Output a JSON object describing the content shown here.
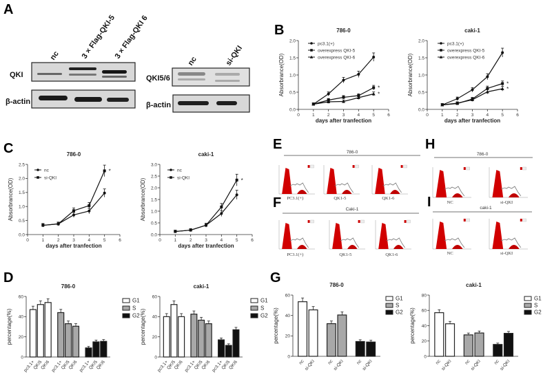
{
  "panel_labels": [
    "A",
    "B",
    "C",
    "D",
    "E",
    "F",
    "G",
    "H",
    "I"
  ],
  "blots": {
    "overexpression": {
      "lanes": [
        "nc",
        "3 × Flag-QKI-5",
        "3 × Flag-QKI 6"
      ],
      "rows": [
        "QKI",
        "β-actin"
      ]
    },
    "knockdown": {
      "lanes": [
        "nc",
        "si-QKI"
      ],
      "rows": [
        "QKI5/6",
        "β-actin"
      ]
    }
  },
  "flow": {
    "E": {
      "title": "786-0",
      "captions": [
        "PC3.1(+)",
        "QK1-5",
        "QK1-6"
      ]
    },
    "F": {
      "title": "Caki-1",
      "captions": [
        "PC3.1(+)",
        "QK1-5",
        "QK1-6"
      ]
    },
    "H": {
      "title": "786-0",
      "captions": [
        "NC",
        "si-QKI"
      ]
    },
    "I": {
      "title": "caki-1",
      "captions": [
        "NC",
        "si-QKI"
      ]
    }
  },
  "chart_data": [
    {
      "id": "B1",
      "type": "line",
      "title": "786-0",
      "xlabel": "days after tranfection",
      "ylabel": "Absorbrance(OD)",
      "xlim": [
        0,
        6
      ],
      "ylim": [
        0,
        2
      ],
      "xticks": [
        0,
        1,
        2,
        3,
        4,
        5,
        6
      ],
      "yticks": [
        0,
        0.5,
        1,
        1.5,
        2
      ],
      "ytick_labels": [
        "0.0",
        "0.5",
        "1.0",
        "1.5",
        "2.0"
      ],
      "x": [
        1,
        2,
        3,
        4,
        5
      ],
      "series": [
        {
          "name": "pc3.1(+)",
          "marker": "circle",
          "values": [
            0.15,
            0.45,
            0.85,
            1.02,
            1.52
          ]
        },
        {
          "name": "overexpress QKI-5",
          "marker": "square",
          "values": [
            0.15,
            0.27,
            0.35,
            0.4,
            0.63
          ]
        },
        {
          "name": "overexpress QKI-6",
          "marker": "triangle",
          "values": [
            0.15,
            0.22,
            0.23,
            0.34,
            0.45
          ]
        }
      ],
      "significance": [
        {
          "series": 1,
          "label": "*"
        },
        {
          "series": 2,
          "label": "*"
        }
      ]
    },
    {
      "id": "B2",
      "type": "line",
      "title": "caki-1",
      "xlabel": "days after tranfection",
      "ylabel": "Absorbrance(OD)",
      "xlim": [
        0,
        6
      ],
      "ylim": [
        0,
        2
      ],
      "xticks": [
        0,
        1,
        2,
        3,
        4,
        5,
        6
      ],
      "yticks": [
        0,
        0.5,
        1,
        1.5,
        2
      ],
      "ytick_labels": [
        "0.0",
        "0.5",
        "1.0",
        "1.5",
        "2.0"
      ],
      "x": [
        1,
        2,
        3,
        4,
        5
      ],
      "series": [
        {
          "name": "pc3.1(+)",
          "marker": "circle",
          "values": [
            0.13,
            0.31,
            0.57,
            0.95,
            1.65
          ]
        },
        {
          "name": "overexpress QKI-5",
          "marker": "square",
          "values": [
            0.13,
            0.17,
            0.3,
            0.61,
            0.75
          ]
        },
        {
          "name": "overexpress QKI-6",
          "marker": "triangle",
          "values": [
            0.13,
            0.18,
            0.28,
            0.51,
            0.6
          ]
        }
      ],
      "significance": [
        {
          "series": 1,
          "label": "*"
        },
        {
          "series": 2,
          "label": "*"
        }
      ]
    },
    {
      "id": "C1",
      "type": "line",
      "title": "786-0",
      "xlabel": "days after tranfection",
      "ylabel": "Absorbrance(OD)",
      "xlim": [
        0,
        6
      ],
      "ylim": [
        0,
        2.5
      ],
      "xticks": [
        0,
        1,
        2,
        3,
        4,
        5,
        6
      ],
      "yticks": [
        0,
        0.5,
        1,
        1.5,
        2,
        2.5
      ],
      "ytick_labels": [
        "0.0",
        "0.5",
        "1.0",
        "1.5",
        "2.0",
        "2.5"
      ],
      "x": [
        1,
        2,
        3,
        4,
        5
      ],
      "series": [
        {
          "name": "nc",
          "marker": "circle",
          "values": [
            0.33,
            0.38,
            0.7,
            0.84,
            1.48
          ]
        },
        {
          "name": "si-QKI",
          "marker": "square",
          "values": [
            0.33,
            0.38,
            0.85,
            1.03,
            2.27
          ]
        }
      ],
      "significance": [
        {
          "series": 1,
          "label": "*"
        }
      ]
    },
    {
      "id": "C2",
      "type": "line",
      "title": "caki-1",
      "xlabel": "days after tranfection",
      "ylabel": "Absorbrance(OD)",
      "xlim": [
        0,
        6
      ],
      "ylim": [
        0,
        3
      ],
      "xticks": [
        0,
        1,
        2,
        3,
        4,
        5,
        6
      ],
      "yticks": [
        0,
        0.5,
        1,
        1.5,
        2,
        2.5,
        3
      ],
      "ytick_labels": [
        "0.0",
        "0.5",
        "1.0",
        "1.5",
        "2.0",
        "2.5",
        "3.0"
      ],
      "x": [
        1,
        2,
        3,
        4,
        5
      ],
      "series": [
        {
          "name": "nc",
          "marker": "circle",
          "values": [
            0.13,
            0.19,
            0.4,
            0.9,
            1.7
          ]
        },
        {
          "name": "si-QKI",
          "marker": "square",
          "values": [
            0.13,
            0.19,
            0.4,
            1.18,
            2.33
          ]
        }
      ],
      "significance": [
        {
          "series": 1,
          "label": "*"
        }
      ]
    },
    {
      "id": "D1",
      "type": "bar",
      "title": "786-0",
      "ylabel": "percentage(%)",
      "ylim": [
        0,
        60
      ],
      "yticks": [
        0,
        20,
        40,
        60
      ],
      "categories": [
        "pc3.1+",
        "QKI5",
        "QKI6"
      ],
      "series": [
        {
          "name": "G1",
          "color": "#ffffff",
          "values": [
            47,
            52,
            54
          ]
        },
        {
          "name": "S",
          "color": "#a8a8a8",
          "values": [
            44,
            33,
            30.5
          ]
        },
        {
          "name": "G2",
          "color": "#111111",
          "values": [
            9,
            15,
            15.5
          ]
        }
      ]
    },
    {
      "id": "D2",
      "type": "bar",
      "title": "caki-1",
      "ylabel": "percentage(%)",
      "ylim": [
        0,
        60
      ],
      "yticks": [
        0,
        20,
        40,
        60
      ],
      "categories": [
        "pc3.1+",
        "QKI5",
        "QKI6"
      ],
      "series": [
        {
          "name": "G1",
          "color": "#ffffff",
          "values": [
            40,
            52,
            40
          ]
        },
        {
          "name": "S",
          "color": "#a8a8a8",
          "values": [
            42.5,
            36.5,
            33
          ]
        },
        {
          "name": "G2",
          "color": "#111111",
          "values": [
            17,
            11.5,
            27
          ]
        }
      ]
    },
    {
      "id": "G1",
      "type": "bar",
      "title": "786-0",
      "ylabel": "percentage(%)",
      "ylim": [
        0,
        60
      ],
      "yticks": [
        0,
        20,
        40,
        60
      ],
      "categories": [
        "nc",
        "si-QKI"
      ],
      "series": [
        {
          "name": "G1",
          "color": "#ffffff",
          "values": [
            53.5,
            45.5
          ]
        },
        {
          "name": "S",
          "color": "#a8a8a8",
          "values": [
            32,
            40.5
          ]
        },
        {
          "name": "G2",
          "color": "#111111",
          "values": [
            14.5,
            14
          ]
        }
      ]
    },
    {
      "id": "G2",
      "type": "bar",
      "title": "caki-1",
      "ylabel": "percentage(%)",
      "ylim": [
        0,
        80
      ],
      "yticks": [
        0,
        20,
        40,
        60,
        80
      ],
      "categories": [
        "nc",
        "si-QKI"
      ],
      "series": [
        {
          "name": "G1",
          "color": "#ffffff",
          "values": [
            57,
            42.5
          ]
        },
        {
          "name": "S",
          "color": "#a8a8a8",
          "values": [
            28,
            30.5
          ]
        },
        {
          "name": "G2",
          "color": "#111111",
          "values": [
            15.5,
            30
          ]
        }
      ]
    }
  ]
}
